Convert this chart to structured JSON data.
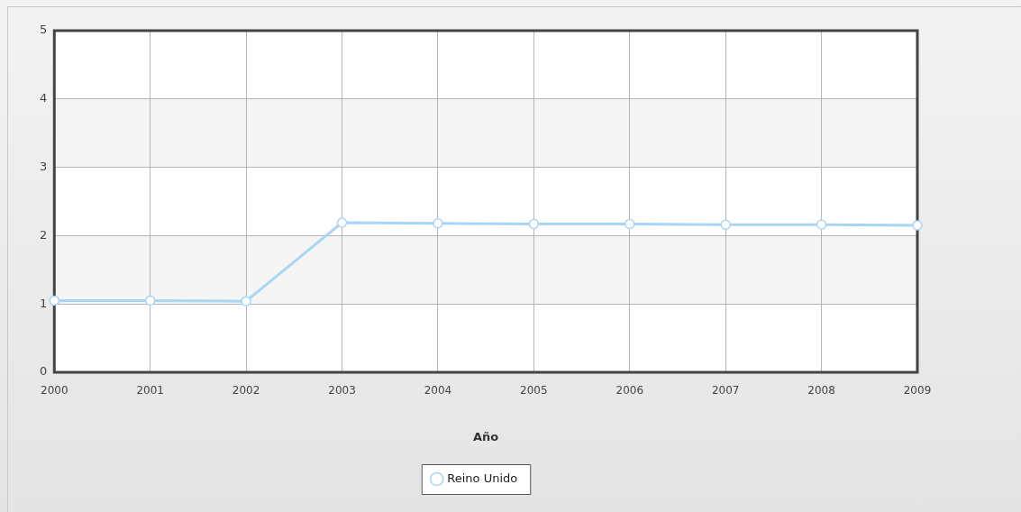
{
  "chart_data": {
    "type": "line",
    "xlabel": "Año",
    "categories": [
      "2000",
      "2001",
      "2002",
      "2003",
      "2004",
      "2005",
      "2006",
      "2007",
      "2008",
      "2009"
    ],
    "series": [
      {
        "name": "Reino Unido",
        "color": "#a9d5f5",
        "values": [
          1.05,
          1.05,
          1.04,
          2.19,
          2.18,
          2.17,
          2.17,
          2.16,
          2.16,
          2.15
        ]
      }
    ],
    "ylim": [
      0,
      5
    ],
    "yticks": [
      0,
      1,
      2,
      3,
      4,
      5
    ],
    "grid": true,
    "legend": "bottom",
    "marker": "circle",
    "line_style": "solid"
  }
}
